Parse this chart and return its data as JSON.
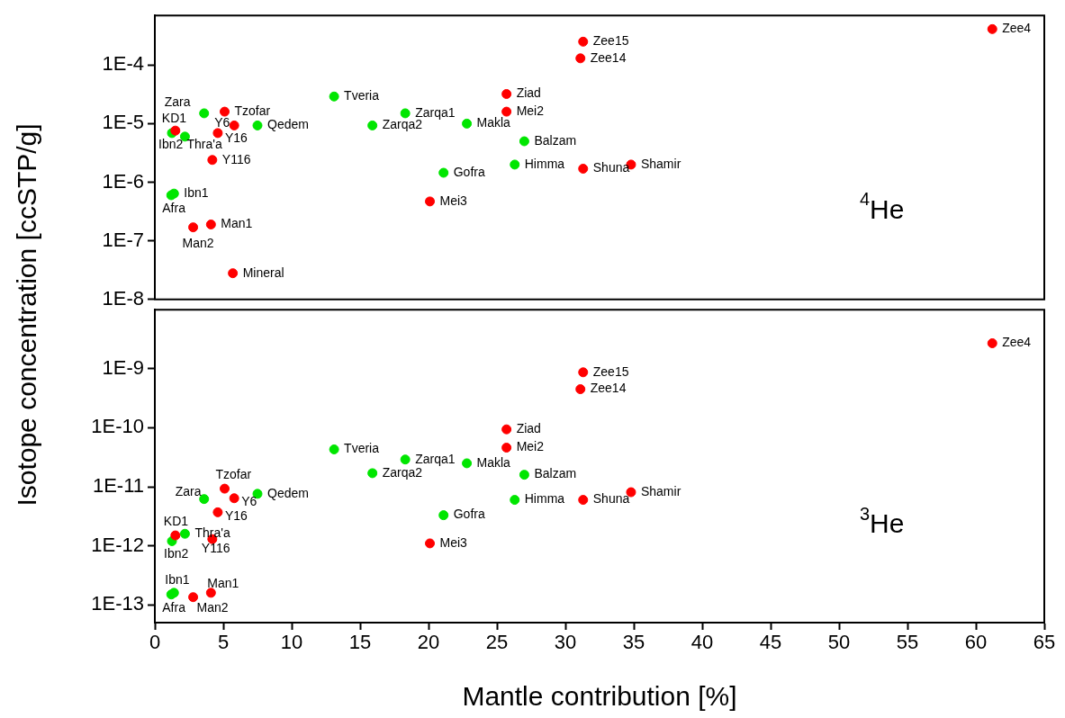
{
  "chart_data": [
    {
      "type": "scatter",
      "ylabel": "Isotope concentration [ccSTP/g]",
      "log": "y",
      "xlim": [
        0,
        65
      ],
      "xticks": [
        0,
        5,
        10,
        15,
        20,
        25,
        30,
        35,
        40,
        45,
        50,
        55,
        60,
        65
      ],
      "ylim": [
        1e-08,
        0.0007
      ],
      "yticks": [
        {
          "value": 1e-08,
          "label": "1E-8"
        },
        {
          "value": 1e-07,
          "label": "1E-7"
        },
        {
          "value": 1e-06,
          "label": "1E-6"
        },
        {
          "value": 1e-05,
          "label": "1E-5"
        },
        {
          "value": 0.0001,
          "label": "1E-4"
        }
      ],
      "tick_labels": "y",
      "grid": false,
      "legend": false,
      "marker": "circle",
      "series": [
        {
          "color": "#ff0000",
          "x": [
            61.2,
            31.3,
            31.1,
            25.7,
            25.7,
            5.1,
            5.8,
            4.6,
            1.5,
            4.2,
            31.3,
            34.8,
            20.1,
            4.1,
            2.8,
            5.7
          ],
          "values": [
            0.00041,
            0.00025,
            0.00013,
            3.2e-05,
            1.6e-05,
            1.6e-05,
            9.3e-06,
            6.9e-06,
            7.6e-06,
            2.4e-06,
            1.7e-06,
            2e-06,
            4.7e-07,
            1.9e-07,
            1.7e-07,
            2.8e-08
          ]
        },
        {
          "color": "#00e600",
          "x": [
            13.1,
            3.6,
            18.3,
            22.8,
            15.9,
            7.5,
            1.25,
            2.2,
            27.0,
            26.3,
            21.1,
            1.4,
            1.2
          ],
          "values": [
            2.9e-05,
            1.5e-05,
            1.5e-05,
            1e-05,
            9.3e-06,
            9.3e-06,
            6.9e-06,
            6e-06,
            5e-06,
            2e-06,
            1.45e-06,
            6.4e-07,
            6e-07
          ]
        }
      ],
      "annotations": [
        {
          "text": "Zee4",
          "x": 61.2,
          "y": 0.00041
        },
        {
          "text": "Zee15",
          "x": 31.3,
          "y": 0.00025
        },
        {
          "text": "Zee14",
          "x": 31.1,
          "y": 0.00013
        },
        {
          "text": "Ziad",
          "x": 25.7,
          "y": 3.2e-05
        },
        {
          "text": "Mei2",
          "x": 25.7,
          "y": 1.6e-05
        },
        {
          "text": "Tzofar",
          "x": 5.1,
          "y": 1.6e-05
        },
        {
          "text": "Y6",
          "x": 5.8,
          "y": 9.3e-06
        },
        {
          "text": "Y16",
          "x": 4.6,
          "y": 6.9e-06
        },
        {
          "text": "KD1",
          "x": 1.5,
          "y": 7.6e-06
        },
        {
          "text": "Y116",
          "x": 4.2,
          "y": 2.4e-06
        },
        {
          "text": "Shuna",
          "x": 31.3,
          "y": 1.7e-06
        },
        {
          "text": "Shamir",
          "x": 34.8,
          "y": 2e-06
        },
        {
          "text": "Mei3",
          "x": 20.1,
          "y": 4.7e-07
        },
        {
          "text": "Man1",
          "x": 4.1,
          "y": 1.9e-07
        },
        {
          "text": "Man2",
          "x": 2.8,
          "y": 1.7e-07
        },
        {
          "text": "Mineral",
          "x": 5.7,
          "y": 2.8e-08
        },
        {
          "text": "Tveria",
          "x": 13.1,
          "y": 2.9e-05
        },
        {
          "text": "Zara",
          "x": 3.6,
          "y": 1.5e-05
        },
        {
          "text": "Zarqa1",
          "x": 18.3,
          "y": 1.5e-05
        },
        {
          "text": "Makla",
          "x": 22.8,
          "y": 1e-05
        },
        {
          "text": "Zarqa2",
          "x": 15.9,
          "y": 9.3e-06
        },
        {
          "text": "Qedem",
          "x": 7.5,
          "y": 9.3e-06
        },
        {
          "text": "Ibn2",
          "x": 1.25,
          "y": 6.9e-06
        },
        {
          "text": "Thra'a",
          "x": 2.2,
          "y": 6e-06
        },
        {
          "text": "Balzam",
          "x": 27.0,
          "y": 5e-06
        },
        {
          "text": "Himma",
          "x": 26.3,
          "y": 2e-06
        },
        {
          "text": "Gofra",
          "x": 21.1,
          "y": 1.45e-06
        },
        {
          "text": "Ibn1",
          "x": 1.4,
          "y": 6.4e-07
        },
        {
          "text": "Afra",
          "x": 1.2,
          "y": 6e-07
        },
        "$^{4}$He"
      ]
    },
    {
      "type": "scatter",
      "xlabel": "Mantle contribution [%]",
      "log": "y",
      "xlim": [
        0,
        65
      ],
      "xticks": [
        0,
        5,
        10,
        15,
        20,
        25,
        30,
        35,
        40,
        45,
        50,
        55,
        60,
        65
      ],
      "ylim": [
        5e-14,
        1e-08
      ],
      "yticks": [
        {
          "value": 1e-13,
          "label": "1E-13"
        },
        {
          "value": 1e-12,
          "label": "1E-12"
        },
        {
          "value": 1e-11,
          "label": "1E-11"
        },
        {
          "value": 1e-10,
          "label": "1E-10"
        },
        {
          "value": 1e-09,
          "label": "1E-9"
        }
      ],
      "grid": false,
      "legend": false,
      "marker": "circle",
      "series": [
        {
          "color": "#ff0000",
          "x": [
            61.2,
            31.3,
            31.1,
            25.7,
            25.7,
            5.1,
            5.8,
            34.8,
            31.3,
            4.6,
            1.5,
            4.2,
            20.1,
            4.1,
            2.8
          ],
          "values": [
            2.7e-09,
            8.7e-10,
            4.5e-10,
            9.4e-11,
            4.6e-11,
            9.3e-12,
            6.4e-12,
            8.1e-12,
            6e-12,
            3.7e-12,
            1.5e-12,
            1.3e-12,
            1.1e-12,
            1.6e-13,
            1.35e-13
          ]
        },
        {
          "color": "#00e600",
          "x": [
            13.1,
            18.3,
            22.8,
            15.9,
            27.0,
            7.5,
            3.6,
            26.3,
            21.1,
            2.2,
            1.25,
            1.4,
            1.2
          ],
          "values": [
            4.3e-11,
            2.9e-11,
            2.5e-11,
            1.7e-11,
            1.6e-11,
            7.6e-12,
            6.2e-12,
            6e-12,
            3.3e-12,
            1.6e-12,
            1.2e-12,
            1.6e-13,
            1.5e-13
          ]
        }
      ],
      "annotations": [
        {
          "text": "Zee4",
          "x": 61.2,
          "y": 2.7e-09
        },
        {
          "text": "Zee15",
          "x": 31.3,
          "y": 8.7e-10
        },
        {
          "text": "Zee14",
          "x": 31.1,
          "y": 4.5e-10
        },
        {
          "text": "Ziad",
          "x": 25.7,
          "y": 9.4e-11
        },
        {
          "text": "Mei2",
          "x": 25.7,
          "y": 4.6e-11
        },
        {
          "text": "Tzofar",
          "x": 5.1,
          "y": 9.3e-12
        },
        {
          "text": "Y6",
          "x": 5.8,
          "y": 6.4e-12
        },
        {
          "text": "Shamir",
          "x": 34.8,
          "y": 8.1e-12
        },
        {
          "text": "Shuna",
          "x": 31.3,
          "y": 6e-12
        },
        {
          "text": "Y16",
          "x": 4.6,
          "y": 3.7e-12
        },
        {
          "text": "KD1",
          "x": 1.5,
          "y": 1.5e-12
        },
        {
          "text": "Y116",
          "x": 4.2,
          "y": 1.3e-12
        },
        {
          "text": "Mei3",
          "x": 20.1,
          "y": 1.1e-12
        },
        {
          "text": "Man1",
          "x": 4.1,
          "y": 1.6e-13
        },
        {
          "text": "Man2",
          "x": 2.8,
          "y": 1.35e-13
        },
        {
          "text": "Tveria",
          "x": 13.1,
          "y": 4.3e-11
        },
        {
          "text": "Zarqa1",
          "x": 18.3,
          "y": 2.9e-11
        },
        {
          "text": "Makla",
          "x": 22.8,
          "y": 2.5e-11
        },
        {
          "text": "Zarqa2",
          "x": 15.9,
          "y": 1.7e-11
        },
        {
          "text": "Balzam",
          "x": 27.0,
          "y": 1.6e-11
        },
        {
          "text": "Qedem",
          "x": 7.5,
          "y": 7.6e-12
        },
        {
          "text": "Zara",
          "x": 3.6,
          "y": 6.2e-12
        },
        {
          "text": "Himma",
          "x": 26.3,
          "y": 6e-12
        },
        {
          "text": "Gofra",
          "x": 21.1,
          "y": 3.3e-12
        },
        {
          "text": "Thra'a",
          "x": 2.2,
          "y": 1.6e-12
        },
        {
          "text": "Ibn2",
          "x": 1.25,
          "y": 1.2e-12
        },
        {
          "text": "Ibn1",
          "x": 1.4,
          "y": 1.6e-13
        },
        {
          "text": "Afra",
          "x": 1.2,
          "y": 1.5e-13
        },
        "$^{3}$He"
      ]
    }
  ]
}
